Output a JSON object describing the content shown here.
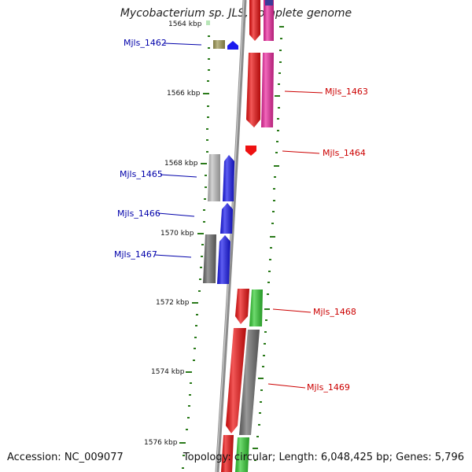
{
  "title": "Mycobacterium sp. JLS, complete genome",
  "footer": {
    "accession": "Accession: NC_009077",
    "stats": "Topology: circular; Length: 6,048,425 bp; Genes: 5,796"
  },
  "colors": {
    "backbone": "#8c8c8c",
    "tick": "#2a7a1a",
    "label_forward": "#0000aa",
    "label_reverse": "#cc0000",
    "gene_red": "#ee1111",
    "gene_pink": "#ee2aa0",
    "gene_blue": "#1a1aee",
    "gene_green": "#33cc33",
    "gene_gray": "#6e6e6e",
    "gene_lightgray": "#c0c0c0",
    "gene_olive": "#a09a55"
  },
  "scale_labels": [
    "1564 kbp",
    "1566 kbp",
    "1568 kbp",
    "1570 kbp",
    "1572 kbp",
    "1574 kbp",
    "1576 kbp"
  ],
  "gene_labels": {
    "forward": [
      "Mjls_1462",
      "Mjls_1465",
      "Mjls_1466",
      "Mjls_1467"
    ],
    "reverse": [
      "Mjls_1463",
      "Mjls_1464",
      "Mjls_1468",
      "Mjls_1469"
    ]
  }
}
